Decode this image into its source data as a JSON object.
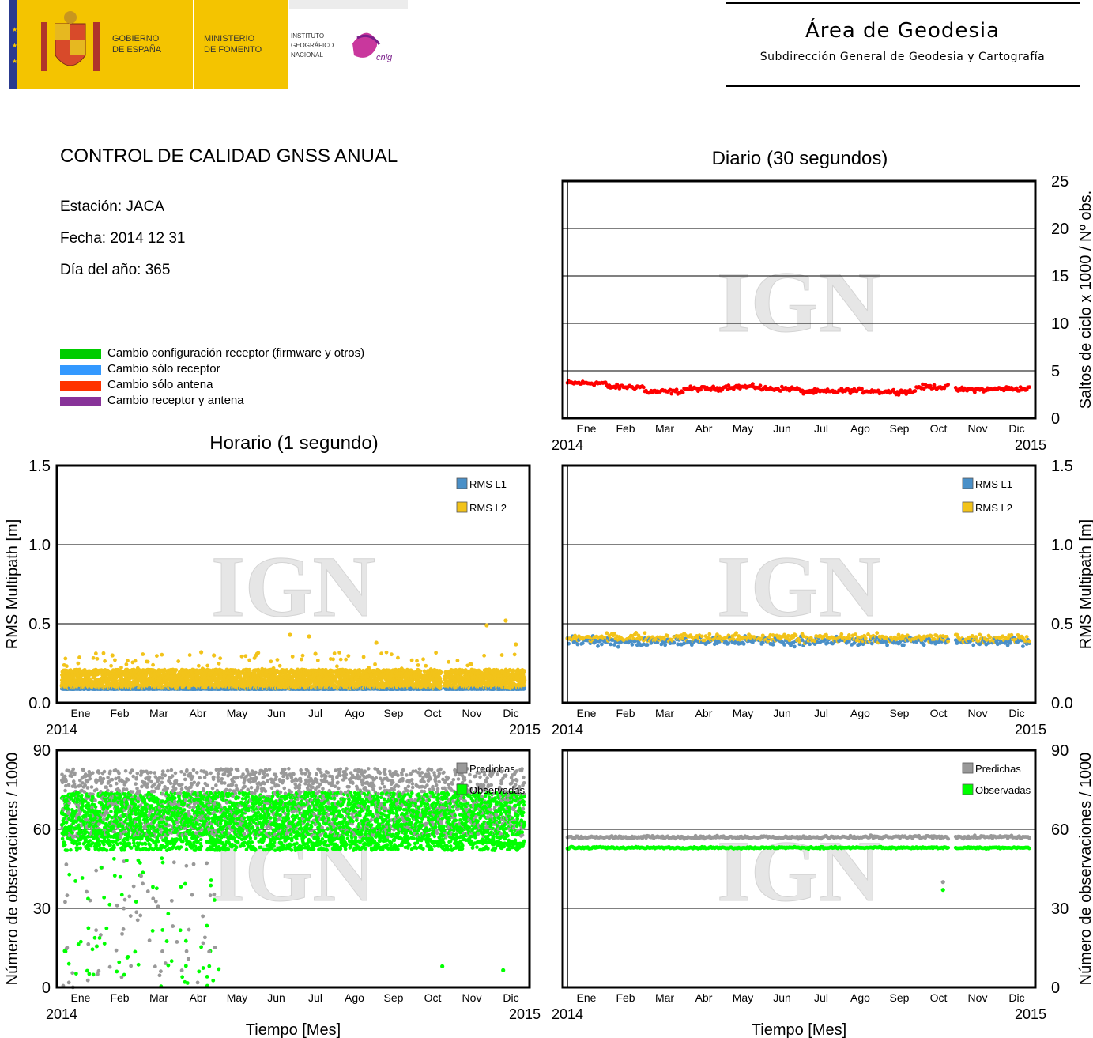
{
  "header": {
    "logo_text": {
      "gobierno": [
        "GOBIERNO",
        "DE ESPAÑA"
      ],
      "ministerio": [
        "MINISTERIO",
        "DE FOMENTO"
      ],
      "instituto": [
        "INSTITUTO",
        "GEOGRÁFICO",
        "NACIONAL"
      ],
      "cnig": "cnig"
    },
    "area_title": "Área de Geodesia",
    "area_subtitle": "Subdirección General de Geodesia y Cartografía"
  },
  "report": {
    "title": "CONTROL DE CALIDAD GNSS ANUAL",
    "station": "Estación: JACA",
    "date": "Fecha: 2014 12 31",
    "doy": "Día del año: 365"
  },
  "event_legend": [
    {
      "label": "Cambio configuración receptor (firmware y otros)",
      "color": "#00cc00"
    },
    {
      "label": "Cambio sólo receptor",
      "color": "#3399ff"
    },
    {
      "label": "Cambio sólo antena",
      "color": "#ff3300"
    },
    {
      "label": "Cambio receptor y antena",
      "color": "#883399"
    }
  ],
  "sections": {
    "daily": "Diario (30 segundos)",
    "hourly": "Horario (1 segundo)"
  },
  "watermark": "IGN",
  "months": [
    "Ene",
    "Feb",
    "Mar",
    "Abr",
    "May",
    "Jun",
    "Jul",
    "Ago",
    "Sep",
    "Oct",
    "Nov",
    "Dic"
  ],
  "year_start": "2014",
  "year_end": "2015",
  "colors": {
    "cycle_slips": "#ff0000",
    "rms_l1": "#4a90c8",
    "rms_l2": "#f2c31a",
    "predicted": "#999999",
    "observed": "#00ff00"
  },
  "chart_data": [
    {
      "id": "daily-cycle-slips",
      "type": "scatter",
      "ylabel": "Saltos de ciclo x 1000 / Nº obs.",
      "ylim": [
        0,
        25
      ],
      "yticks": [
        "0",
        "5",
        "10",
        "15",
        "20",
        "25"
      ],
      "y_axis_side": "right",
      "series": [
        {
          "key": "slips",
          "color_key": "cycle_slips",
          "monthly_mean": {
            "Ene": 3.7,
            "Feb": 3.3,
            "Mar": 2.8,
            "Abr": 3.1,
            "May": 3.3,
            "Jun": 3.1,
            "Jul": 2.8,
            "Ago": 2.9,
            "Sep": 2.8,
            "Oct": 3.3,
            "Nov": 3.0,
            "Dic": 3.1
          }
        }
      ]
    },
    {
      "id": "hourly-rms-multipath",
      "type": "scatter",
      "ylabel": "RMS Multipath [m]",
      "ylim": [
        0,
        1.5
      ],
      "yticks": [
        "0.0",
        "0.5",
        "1.0",
        "1.5"
      ],
      "y_axis_side": "left",
      "legend": [
        {
          "name": "RMS L1",
          "color_key": "rms_l1"
        },
        {
          "name": "RMS L2",
          "color_key": "rms_l2"
        }
      ],
      "series": [
        {
          "name": "RMS L1",
          "band": [
            0.08,
            0.1
          ]
        },
        {
          "name": "RMS L2",
          "band": [
            0.08,
            0.22
          ],
          "max": 0.52
        }
      ]
    },
    {
      "id": "daily-rms-multipath",
      "type": "scatter",
      "ylabel": "RMS Multipath [m]",
      "ylim": [
        0,
        1.5
      ],
      "yticks": [
        "0.0",
        "0.5",
        "1.0",
        "1.5"
      ],
      "y_axis_side": "right",
      "legend": [
        {
          "name": "RMS L1",
          "color_key": "rms_l1"
        },
        {
          "name": "RMS L2",
          "color_key": "rms_l2"
        }
      ],
      "series": [
        {
          "name": "RMS L1",
          "mean": 0.39
        },
        {
          "name": "RMS L2",
          "mean": 0.41
        }
      ]
    },
    {
      "id": "hourly-observations",
      "type": "scatter",
      "xlabel": "Tiempo [Mes]",
      "ylabel": "Número de observaciones / 1000",
      "ylim": [
        0,
        90
      ],
      "yticks": [
        "0",
        "30",
        "60",
        "90"
      ],
      "y_axis_side": "left",
      "legend": [
        {
          "name": "Predichas",
          "color_key": "predicted"
        },
        {
          "name": "Observadas",
          "color_key": "observed"
        }
      ],
      "series": [
        {
          "name": "Predichas",
          "band": [
            55,
            80
          ],
          "max": 88
        },
        {
          "name": "Observadas",
          "band": [
            50,
            75
          ],
          "max": 85
        }
      ]
    },
    {
      "id": "daily-observations",
      "type": "scatter",
      "xlabel": "Tiempo [Mes]",
      "ylabel": "Número de observaciones / 1000",
      "ylim": [
        0,
        90
      ],
      "yticks": [
        "0",
        "30",
        "60",
        "90"
      ],
      "y_axis_side": "right",
      "legend": [
        {
          "name": "Predichas",
          "color_key": "predicted"
        },
        {
          "name": "Observadas",
          "color_key": "observed"
        }
      ],
      "series": [
        {
          "name": "Predichas",
          "mean": 57
        },
        {
          "name": "Observadas",
          "mean": 53
        }
      ]
    }
  ]
}
